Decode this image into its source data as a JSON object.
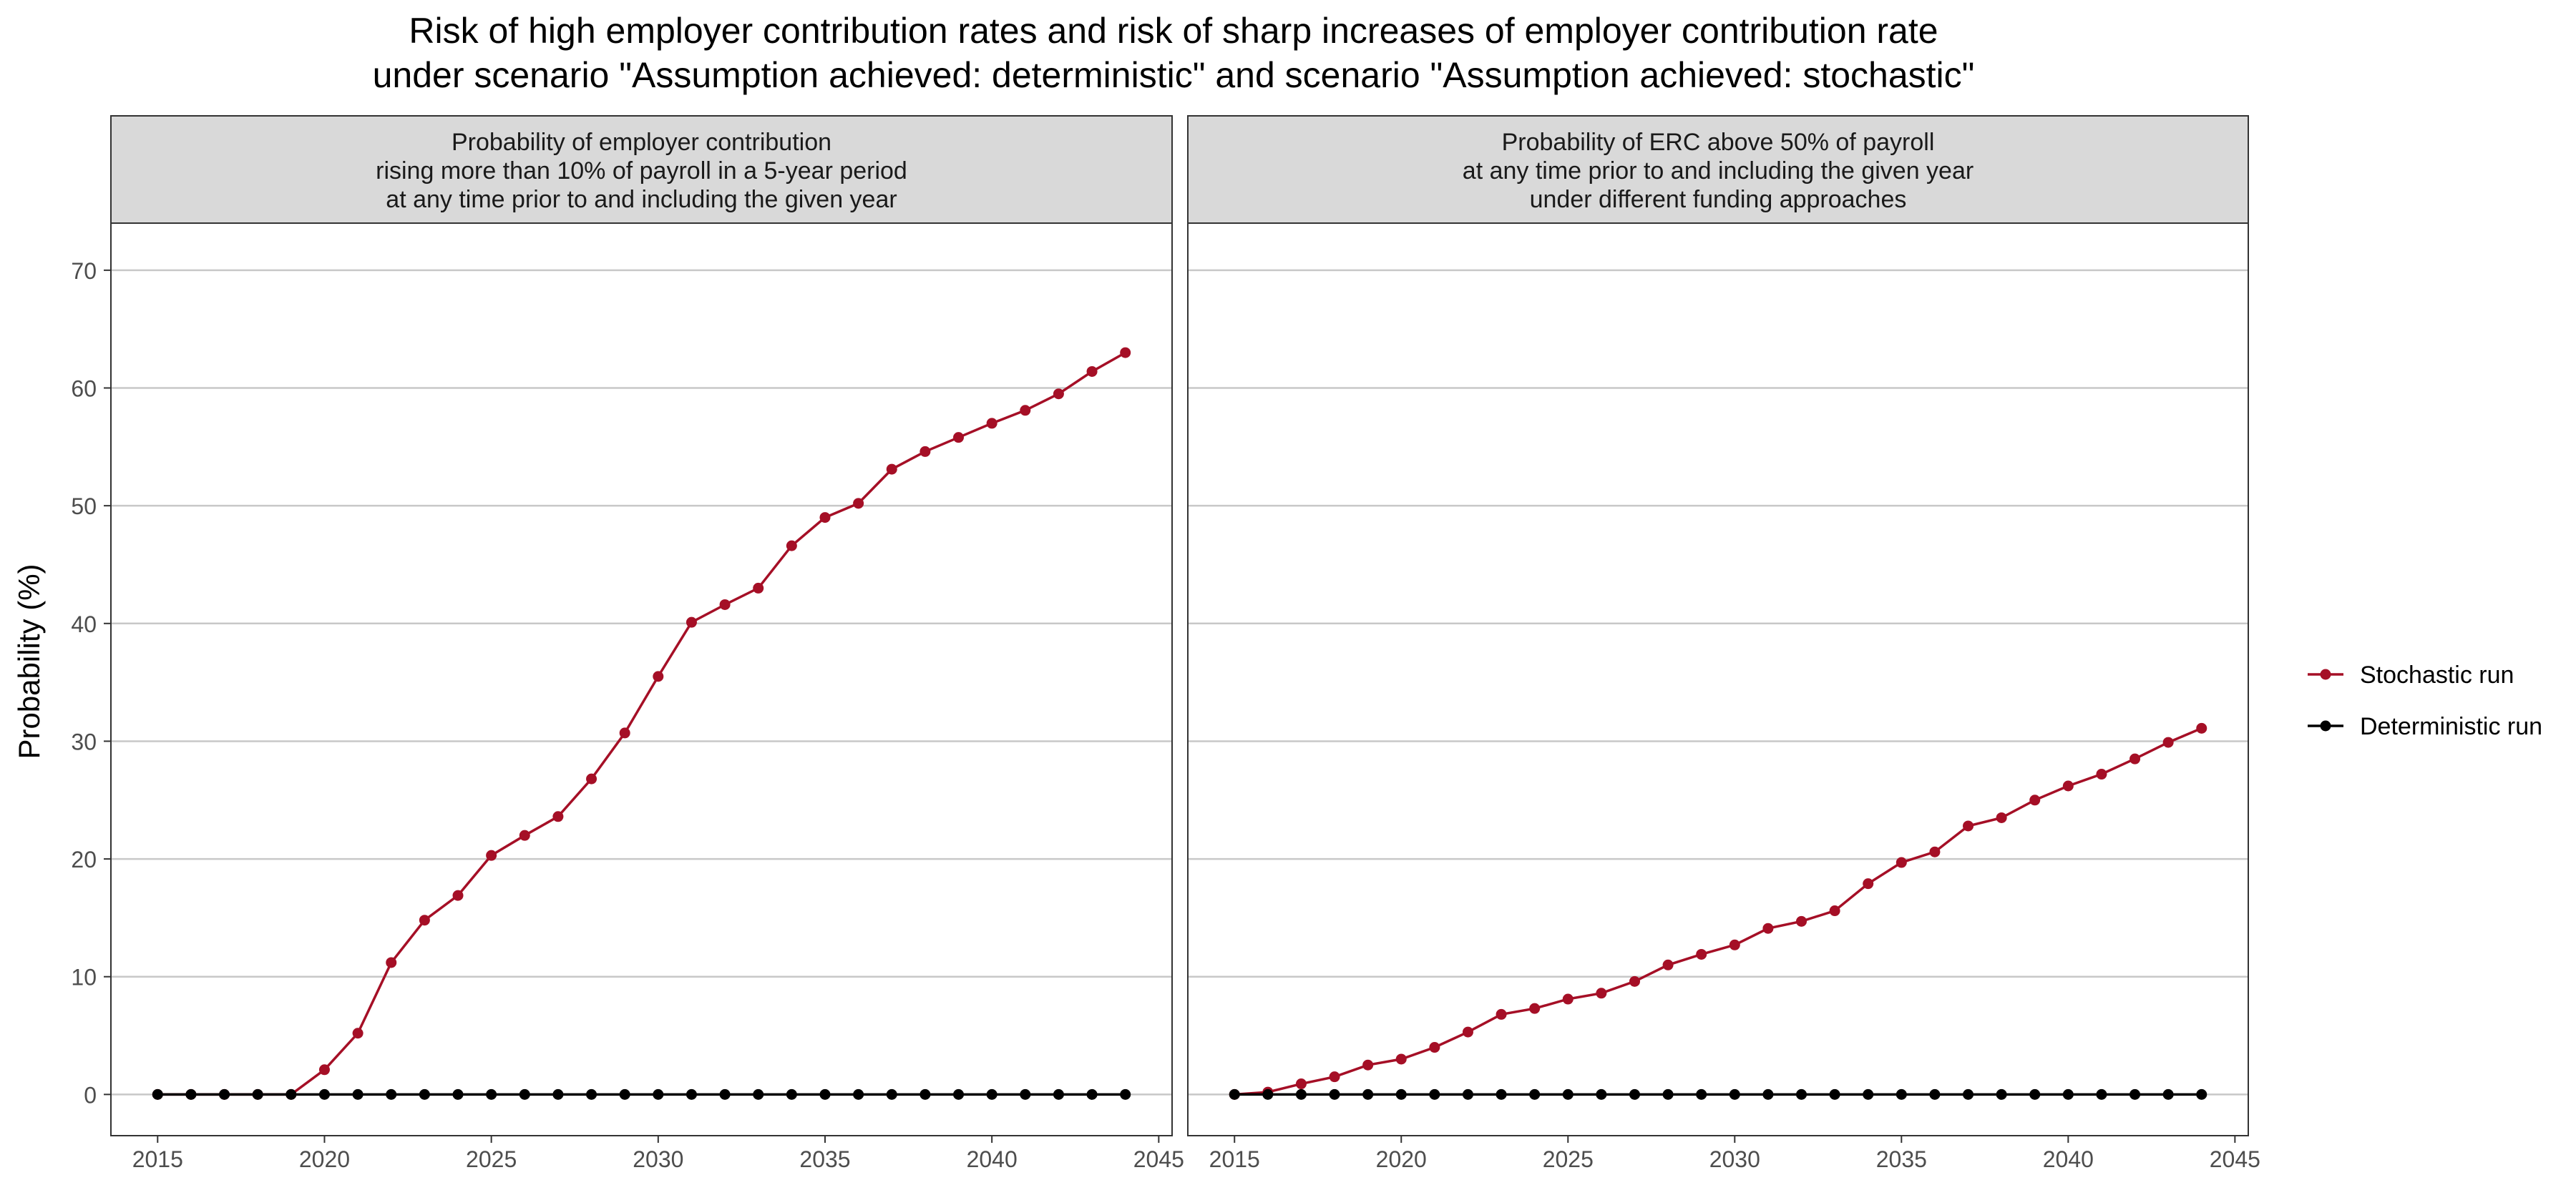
{
  "title_lines": [
    "Risk of high employer contribution rates and risk of sharp increases of employer contribution rate",
    "under scenario \"Assumption achieved: deterministic\" and scenario \"Assumption achieved: stochastic\""
  ],
  "ylabel": "Probability (%)",
  "colors": {
    "stochastic": "#a50f26",
    "deterministic": "#000000",
    "strip_bg": "#d9d9d9",
    "grid": "#c8c8c8"
  },
  "legend": [
    {
      "name": "Stochastic run",
      "color": "#a50f26"
    },
    {
      "name": "Deterministic run",
      "color": "#000000"
    }
  ],
  "chart_data": [
    {
      "type": "line",
      "panel_title": [
        "Probability of employer contribution",
        "rising more than 10% of payroll in a 5-year period",
        "at any time prior to and including the given year"
      ],
      "xlim": [
        2013.6,
        2045.4
      ],
      "ylim": [
        -3.5,
        74
      ],
      "x_ticks": [
        2015,
        2020,
        2025,
        2030,
        2035,
        2040,
        2045
      ],
      "y_ticks": [
        0,
        10,
        20,
        30,
        40,
        50,
        60,
        70
      ],
      "grid": true,
      "legend_position": "right",
      "x": [
        2015,
        2016,
        2017,
        2018,
        2019,
        2020,
        2021,
        2022,
        2023,
        2024,
        2025,
        2026,
        2027,
        2028,
        2029,
        2030,
        2031,
        2032,
        2033,
        2034,
        2035,
        2036,
        2037,
        2038,
        2039,
        2040,
        2041,
        2042,
        2043,
        2044
      ],
      "series": [
        {
          "name": "Stochastic run",
          "values": [
            0,
            0,
            0,
            0,
            0,
            2.1,
            5.2,
            11.2,
            14.8,
            16.9,
            20.3,
            22.0,
            23.6,
            26.8,
            30.7,
            35.5,
            40.1,
            41.6,
            43.0,
            46.6,
            49.0,
            50.2,
            53.1,
            54.6,
            55.8,
            57.0,
            58.1,
            59.5,
            61.4,
            63.0
          ]
        },
        {
          "name": "Deterministic run",
          "values": [
            0,
            0,
            0,
            0,
            0,
            0,
            0,
            0,
            0,
            0,
            0,
            0,
            0,
            0,
            0,
            0,
            0,
            0,
            0,
            0,
            0,
            0,
            0,
            0,
            0,
            0,
            0,
            0,
            0,
            0
          ]
        }
      ]
    },
    {
      "type": "line",
      "panel_title": [
        "Probability of ERC above 50% of payroll",
        "at any time prior to and including the given year",
        "under different funding approaches"
      ],
      "xlim": [
        2013.6,
        2045.4
      ],
      "ylim": [
        -3.5,
        74
      ],
      "x_ticks": [
        2015,
        2020,
        2025,
        2030,
        2035,
        2040,
        2045
      ],
      "y_ticks": [
        0,
        10,
        20,
        30,
        40,
        50,
        60,
        70
      ],
      "grid": true,
      "legend_position": "right",
      "x": [
        2015,
        2016,
        2017,
        2018,
        2019,
        2020,
        2021,
        2022,
        2023,
        2024,
        2025,
        2026,
        2027,
        2028,
        2029,
        2030,
        2031,
        2032,
        2033,
        2034,
        2035,
        2036,
        2037,
        2038,
        2039,
        2040,
        2041,
        2042,
        2043,
        2044
      ],
      "series": [
        {
          "name": "Stochastic run",
          "values": [
            0,
            0.2,
            0.9,
            1.5,
            2.5,
            3.0,
            4.0,
            5.3,
            6.8,
            7.3,
            8.1,
            8.6,
            9.6,
            11.0,
            11.9,
            12.7,
            14.1,
            14.7,
            15.6,
            17.9,
            19.7,
            20.6,
            22.8,
            23.5,
            25.0,
            26.2,
            27.2,
            28.5,
            29.9,
            31.1
          ]
        },
        {
          "name": "Deterministic run",
          "values": [
            0,
            0,
            0,
            0,
            0,
            0,
            0,
            0,
            0,
            0,
            0,
            0,
            0,
            0,
            0,
            0,
            0,
            0,
            0,
            0,
            0,
            0,
            0,
            0,
            0,
            0,
            0,
            0,
            0,
            0
          ]
        }
      ]
    }
  ]
}
